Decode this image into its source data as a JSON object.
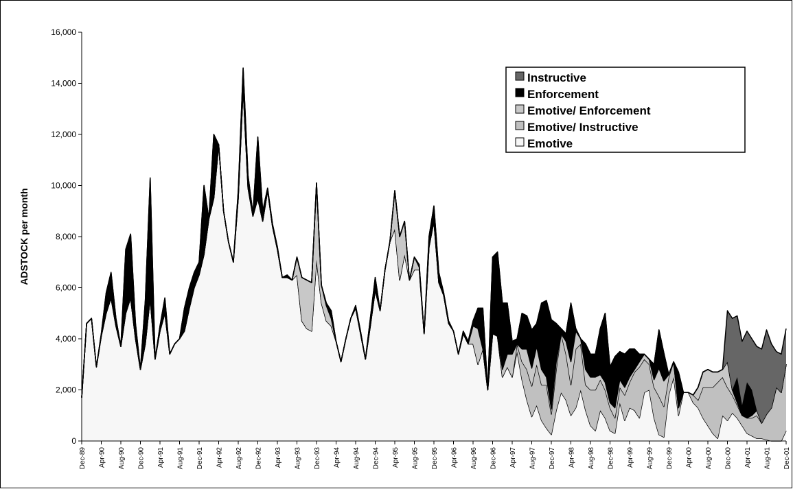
{
  "chart_data": {
    "type": "stacked-area",
    "y_label": "ADSTOCK per month",
    "categories": [
      "Dec-89",
      null,
      null,
      null,
      "Apr-90",
      null,
      null,
      null,
      "Aug-90",
      null,
      null,
      null,
      "Dec-90",
      null,
      null,
      null,
      "Apr-91",
      null,
      null,
      null,
      "Aug-91",
      null,
      null,
      null,
      "Dec-91",
      null,
      null,
      null,
      "Apr-92",
      null,
      null,
      null,
      "Aug-92",
      null,
      null,
      null,
      "Dec-92",
      null,
      null,
      null,
      "Apr-93",
      null,
      null,
      null,
      "Aug-93",
      null,
      null,
      null,
      "Dec-93",
      null,
      null,
      null,
      "Apr-94",
      null,
      null,
      null,
      "Aug-94",
      null,
      null,
      null,
      "Dec-94",
      null,
      null,
      null,
      "Apr-95",
      null,
      null,
      null,
      "Aug-95",
      null,
      null,
      null,
      "Dec-95",
      null,
      null,
      null,
      "Apr-96",
      null,
      null,
      null,
      "Aug-96",
      null,
      null,
      null,
      "Dec-96",
      null,
      null,
      null,
      "Apr-97",
      null,
      null,
      null,
      "Aug-97",
      null,
      null,
      null,
      "Dec-97",
      null,
      null,
      null,
      "Apr-98",
      null,
      null,
      null,
      "Aug-98",
      null,
      null,
      null,
      "Dec-98",
      null,
      null,
      null,
      "Apr-99",
      null,
      null,
      null,
      "Aug-99",
      null,
      null,
      null,
      "Dec-99",
      null,
      null,
      null,
      "Apr-00",
      null,
      null,
      null,
      "Aug-00",
      null,
      null,
      null,
      "Dec-00",
      null,
      null,
      null,
      "Apr-01",
      null,
      null,
      null,
      "Aug-01",
      null,
      null,
      null,
      "Dec-01"
    ],
    "series": [
      {
        "name": "Emotive",
        "color": "#f7f7f7",
        "values": [
          1700,
          4600,
          4800,
          2900,
          4100,
          5000,
          5600,
          4500,
          3700,
          5000,
          5600,
          4000,
          2800,
          3800,
          5600,
          3200,
          4300,
          5000,
          3400,
          3800,
          4000,
          4300,
          5200,
          6000,
          6500,
          7300,
          8700,
          9500,
          11600,
          9000,
          7800,
          7000,
          9500,
          13800,
          9900,
          8800,
          9500,
          8600,
          9800,
          8400,
          7500,
          6400,
          6400,
          6300,
          6500,
          4700,
          4400,
          4300,
          7100,
          5400,
          4700,
          4500,
          3900,
          3100,
          4000,
          4800,
          5200,
          4200,
          3200,
          4500,
          5900,
          5100,
          6700,
          7800,
          8300,
          6300,
          7300,
          6300,
          6700,
          6700,
          4200,
          7600,
          8600,
          6200,
          5700,
          4600,
          4300,
          3400,
          4200,
          3800,
          3800,
          3000,
          3600,
          2000,
          4200,
          4100,
          2500,
          2900,
          2500,
          3500,
          2400,
          1600,
          950,
          1400,
          800,
          500,
          250,
          1200,
          1900,
          1600,
          1000,
          1300,
          2000,
          1200,
          600,
          400,
          1200,
          900,
          400,
          300,
          1500,
          800,
          1300,
          1200,
          900,
          1900,
          2000,
          900,
          250,
          150,
          1800,
          2500,
          1000,
          1900,
          1900,
          1500,
          1300,
          900,
          600,
          300,
          100,
          1000,
          800,
          1100,
          900,
          600,
          300,
          200,
          100,
          100,
          50,
          0,
          0,
          0,
          400
        ]
      },
      {
        "name": "Emotive/ Instructive",
        "color": "#c0c0c0",
        "values": [
          0,
          0,
          0,
          0,
          0,
          0,
          0,
          0,
          0,
          0,
          0,
          0,
          0,
          0,
          0,
          0,
          0,
          0,
          0,
          0,
          0,
          0,
          0,
          0,
          0,
          0,
          0,
          0,
          0,
          0,
          0,
          0,
          0,
          0,
          0,
          0,
          0,
          0,
          0,
          0,
          0,
          0,
          0,
          0,
          0,
          0,
          0,
          0,
          0,
          0,
          0,
          0,
          0,
          0,
          0,
          0,
          0,
          0,
          0,
          0,
          0,
          0,
          0,
          0,
          0,
          0,
          0,
          0,
          0,
          0,
          0,
          0,
          0,
          0,
          0,
          0,
          0,
          0,
          0,
          0,
          0,
          0,
          0,
          0,
          0,
          0,
          0,
          0,
          0,
          300,
          700,
          1200,
          1200,
          1600,
          1400,
          1700,
          800,
          1600,
          2300,
          1800,
          1200,
          2300,
          1800,
          1000,
          1400,
          1600,
          1200,
          1100,
          900,
          600,
          600,
          1000,
          1000,
          1500,
          2000,
          1300,
          1000,
          1200,
          1500,
          1200,
          700,
          600,
          300,
          0,
          0,
          300,
          300,
          1200,
          1500,
          1800,
          2200,
          1500,
          1300,
          700,
          500,
          400,
          600,
          700,
          900,
          600,
          1000,
          1300,
          2100,
          1900,
          2600
        ]
      },
      {
        "name": "Emotive/ Enforcement",
        "color": "#c8c8c8",
        "values": [
          0,
          0,
          0,
          0,
          0,
          0,
          0,
          0,
          0,
          0,
          0,
          0,
          0,
          0,
          0,
          0,
          0,
          0,
          0,
          0,
          0,
          0,
          0,
          0,
          0,
          0,
          0,
          0,
          0,
          0,
          0,
          0,
          0,
          0,
          0,
          0,
          0,
          0,
          0,
          0,
          0,
          0,
          0,
          0,
          700,
          1700,
          1900,
          1900,
          3000,
          700,
          600,
          300,
          0,
          0,
          0,
          0,
          0,
          0,
          0,
          0,
          0,
          0,
          0,
          0,
          1500,
          1700,
          1300,
          0,
          500,
          100,
          0,
          0,
          0,
          0,
          0,
          0,
          0,
          0,
          0,
          0,
          700,
          1400,
          0,
          0,
          0,
          0,
          300,
          500,
          900,
          0,
          500,
          800,
          700,
          700,
          600,
          300,
          200,
          300,
          0,
          500,
          900,
          700,
          200,
          600,
          500,
          500,
          200,
          300,
          200,
          400,
          300,
          300,
          200,
          100,
          200,
          200,
          200,
          300,
          1100,
          1000,
          100,
          0,
          0,
          0,
          0,
          0,
          500,
          600,
          700,
          600,
          400,
          300,
          1000,
          200,
          100,
          0,
          0,
          100,
          200,
          0,
          0,
          0,
          0,
          0,
          0
        ]
      },
      {
        "name": "Enforcement",
        "color": "#000000",
        "values": [
          0,
          0,
          0,
          0,
          100,
          800,
          1000,
          300,
          0,
          2500,
          2500,
          600,
          0,
          1700,
          4700,
          0,
          200,
          600,
          0,
          0,
          0,
          900,
          800,
          600,
          500,
          2700,
          0,
          2500,
          0,
          0,
          0,
          0,
          300,
          800,
          500,
          100,
          2400,
          400,
          100,
          100,
          100,
          0,
          100,
          0,
          0,
          0,
          0,
          0,
          0,
          0,
          100,
          300,
          0,
          0,
          0,
          0,
          100,
          100,
          0,
          300,
          500,
          0,
          0,
          0,
          0,
          0,
          0,
          0,
          0,
          100,
          0,
          400,
          600,
          400,
          100,
          100,
          0,
          0,
          100,
          100,
          200,
          800,
          1600,
          0,
          3000,
          3300,
          2600,
          2000,
          500,
          200,
          1400,
          1300,
          1500,
          900,
          2600,
          3000,
          3500,
          1500,
          200,
          300,
          2300,
          100,
          0,
          1000,
          900,
          900,
          1800,
          2700,
          1400,
          2000,
          1100,
          1300,
          1100,
          800,
          300,
          0,
          0,
          600,
          1500,
          1100,
          0,
          0,
          1400,
          0,
          0,
          0,
          0,
          0,
          0,
          0,
          0,
          0,
          0,
          0,
          1000,
          400,
          1400,
          1000,
          0,
          0,
          0,
          0,
          0,
          0,
          0
        ]
      },
      {
        "name": "Instructive",
        "color": "#666666",
        "values": [
          0,
          0,
          0,
          0,
          0,
          0,
          0,
          0,
          0,
          0,
          0,
          0,
          0,
          0,
          0,
          0,
          0,
          0,
          0,
          0,
          0,
          0,
          0,
          0,
          0,
          0,
          0,
          0,
          0,
          0,
          0,
          0,
          0,
          0,
          0,
          0,
          0,
          0,
          0,
          0,
          0,
          0,
          0,
          0,
          0,
          0,
          0,
          0,
          0,
          0,
          0,
          0,
          0,
          0,
          0,
          0,
          0,
          0,
          0,
          0,
          0,
          0,
          0,
          0,
          0,
          0,
          0,
          0,
          0,
          0,
          0,
          0,
          0,
          0,
          0,
          0,
          0,
          0,
          0,
          0,
          0,
          0,
          0,
          0,
          0,
          0,
          0,
          0,
          0,
          0,
          0,
          0,
          0,
          0,
          0,
          0,
          0,
          0,
          0,
          0,
          0,
          0,
          0,
          0,
          0,
          0,
          0,
          0,
          0,
          0,
          0,
          0,
          0,
          0,
          0,
          0,
          0,
          0,
          0,
          0,
          0,
          0,
          0,
          0,
          0,
          0,
          0,
          0,
          0,
          0,
          0,
          0,
          2000,
          2800,
          2400,
          2500,
          2000,
          2000,
          2500,
          2900,
          3300,
          2500,
          1400,
          1500,
          1400
        ]
      }
    ],
    "ylim": [
      0,
      16000
    ],
    "yticks": [
      0,
      {
        "value": 2000,
        "label": "2,000"
      },
      {
        "value": 4000,
        "label": "4,000"
      },
      {
        "value": 6000,
        "label": "6,000"
      },
      {
        "value": 8000,
        "label": "8,000"
      },
      {
        "value": 10000,
        "label": "10,000"
      },
      {
        "value": 12000,
        "label": "12,000"
      },
      {
        "value": 14000,
        "label": "14,000"
      },
      {
        "value": 16000,
        "label": "16,000"
      }
    ],
    "legend": "upper-right"
  }
}
